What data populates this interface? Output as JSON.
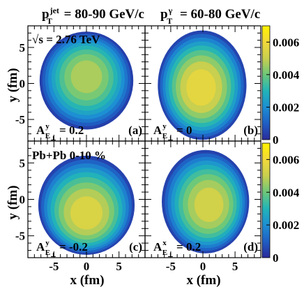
{
  "chart_data": {
    "type": "heatmap",
    "xlabel": "x (fm)",
    "ylabel": "y (fm)",
    "xlim": [
      -9,
      9
    ],
    "ylim": [
      -8,
      8
    ],
    "x_ticks": [
      -5,
      0,
      5
    ],
    "y_ticks": [
      -5,
      0,
      5
    ],
    "color_scale": {
      "min": 0,
      "max": 0.007,
      "ticks": [
        0.002,
        0.004,
        0.006
      ],
      "tick_labels": [
        "0.002",
        "0.004",
        "0.006"
      ],
      "zero_label": "0",
      "colors": [
        "#2a2a9a",
        "#1f5fc4",
        "#1d8fd3",
        "#22b4b8",
        "#6cc87a",
        "#c9cf4e",
        "#f2d93a",
        "#fff200"
      ]
    },
    "column_titles": [
      {
        "main": "p",
        "sup": "jet",
        "sub": "T",
        "rest": " = 80-90 GeV/c"
      },
      {
        "main": "p",
        "sup": "γ",
        "sub": "T",
        "rest": " = 60-80 GeV/c"
      }
    ],
    "energy_label": "√s = 2.76 TeV",
    "system_label": "Pb+Pb 0-10 %",
    "panels": [
      {
        "tag": "(a)",
        "asym": {
          "letter": "A",
          "sup": "y",
          "sub": "E",
          "subsub": "⊥",
          "value": " = 0.2"
        },
        "peak": 0.0052,
        "center": [
          0,
          1.0
        ],
        "radii": [
          7.2,
          6.8
        ]
      },
      {
        "tag": "(b)",
        "asym": {
          "letter": "A",
          "sup": "y",
          "sub": "E",
          "subsub": "⊥",
          "value": " = 0"
        },
        "peak": 0.0063,
        "center": [
          -0.3,
          -0.6
        ],
        "radii": [
          6.9,
          7.6
        ]
      },
      {
        "tag": "(c)",
        "asym": {
          "letter": "A",
          "sup": "y",
          "sub": "E",
          "subsub": "⊥",
          "value": " = -0.2"
        },
        "peak": 0.006,
        "center": [
          0,
          -2.0
        ],
        "radii": [
          7.4,
          6.8
        ]
      },
      {
        "tag": "(d)",
        "asym": {
          "letter": "A",
          "sup": "x",
          "sub": "E",
          "subsub": "⊥",
          "value": " = 0.2"
        },
        "peak": 0.0058,
        "center": [
          1.0,
          -0.8
        ],
        "radii": [
          6.8,
          7.1
        ]
      }
    ]
  }
}
